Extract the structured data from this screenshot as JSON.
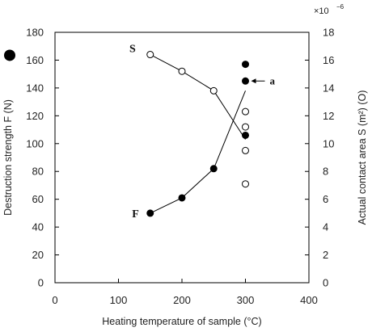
{
  "chart_data": {
    "type": "scatter",
    "x_axis": {
      "label": "Heating temperature of sample (°C)",
      "range": [
        0,
        400
      ],
      "ticks": [
        0,
        100,
        200,
        300,
        400
      ]
    },
    "y_axis_left": {
      "label": "Destruction strength F (N)",
      "range": [
        0,
        180
      ],
      "ticks": [
        0,
        20,
        40,
        60,
        80,
        100,
        120,
        140,
        160,
        180
      ]
    },
    "y_axis_right": {
      "label": "Actual contact area S (m²) (O)",
      "range": [
        0,
        18
      ],
      "ticks": [
        0,
        2,
        4,
        6,
        8,
        10,
        12,
        14,
        16,
        18
      ],
      "multiplier_base": "×10",
      "multiplier_exponent": "−6"
    },
    "series": [
      {
        "name": "F",
        "marker": "filled-circle",
        "axis": "left",
        "points": [
          [
            150,
            50
          ],
          [
            200,
            61
          ],
          [
            250,
            82
          ],
          [
            300,
            106
          ],
          [
            300,
            145
          ],
          [
            300,
            157
          ]
        ],
        "trend": [
          [
            150,
            50
          ],
          [
            200,
            61
          ],
          [
            250,
            82
          ],
          [
            300,
            138
          ]
        ]
      },
      {
        "name": "S",
        "marker": "open-circle",
        "axis": "right",
        "points": [
          [
            150,
            16.4
          ],
          [
            200,
            15.2
          ],
          [
            250,
            13.8
          ],
          [
            300,
            12.3
          ],
          [
            300,
            11.2
          ],
          [
            300,
            9.5
          ],
          [
            300,
            7.1
          ]
        ],
        "trend": [
          [
            150,
            16.4
          ],
          [
            200,
            15.2
          ],
          [
            250,
            13.8
          ],
          [
            300,
            10.3
          ]
        ]
      }
    ],
    "annotations": [
      {
        "text": "a",
        "x": 300,
        "y": 145,
        "axis": "left"
      }
    ],
    "grid": false,
    "legend": "none"
  }
}
